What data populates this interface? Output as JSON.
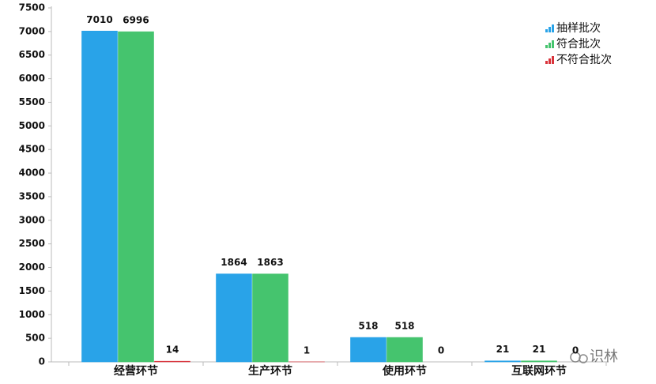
{
  "chart_data": {
    "type": "bar",
    "categories": [
      "经营环节",
      "生产环节",
      "使用环节",
      "互联网环节"
    ],
    "series": [
      {
        "name": "抽样批次",
        "color": "#29a3e8",
        "values": [
          7010,
          1864,
          518,
          21
        ]
      },
      {
        "name": "符合批次",
        "color": "#45c46e",
        "values": [
          6996,
          1863,
          518,
          21
        ]
      },
      {
        "name": "不符合批次",
        "color": "#d9343c",
        "values": [
          14,
          1,
          0,
          0
        ]
      }
    ],
    "ylim": [
      0,
      7500
    ],
    "yticks": [
      0,
      500,
      1000,
      1500,
      2000,
      2500,
      3000,
      3500,
      4000,
      4500,
      5000,
      5500,
      6000,
      6500,
      7000,
      7500
    ],
    "grid": false,
    "legend": "top-right",
    "watermark": "识林"
  }
}
